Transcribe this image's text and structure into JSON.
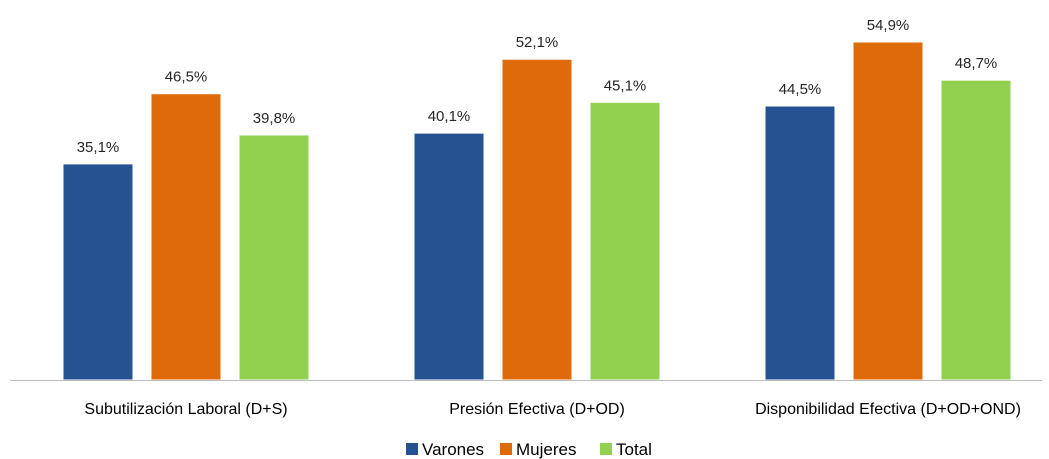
{
  "chart_data": {
    "type": "bar",
    "categories": [
      "Subutilización Laboral (D+S)",
      "Presión Efectiva (D+OD)",
      "Disponibilidad Efectiva (D+OD+OND)"
    ],
    "series": [
      {
        "name": "Varones",
        "color": "#255290",
        "values": [
          35.1,
          40.1,
          44.5
        ],
        "labels": [
          "35,1%",
          "40,1%",
          "44,5%"
        ]
      },
      {
        "name": "Mujeres",
        "color": "#DE6A0A",
        "values": [
          46.5,
          52.1,
          54.9
        ],
        "labels": [
          "46,5%",
          "52,1%",
          "54,9%"
        ]
      },
      {
        "name": "Total",
        "color": "#92D050",
        "values": [
          39.8,
          45.1,
          48.7
        ],
        "labels": [
          "39,8%",
          "45,1%",
          "48,7%"
        ]
      }
    ],
    "ylim": [
      0,
      62
    ],
    "grid": false,
    "legend_position": "bottom-center",
    "axis_line_color": "#BFBFBF"
  }
}
